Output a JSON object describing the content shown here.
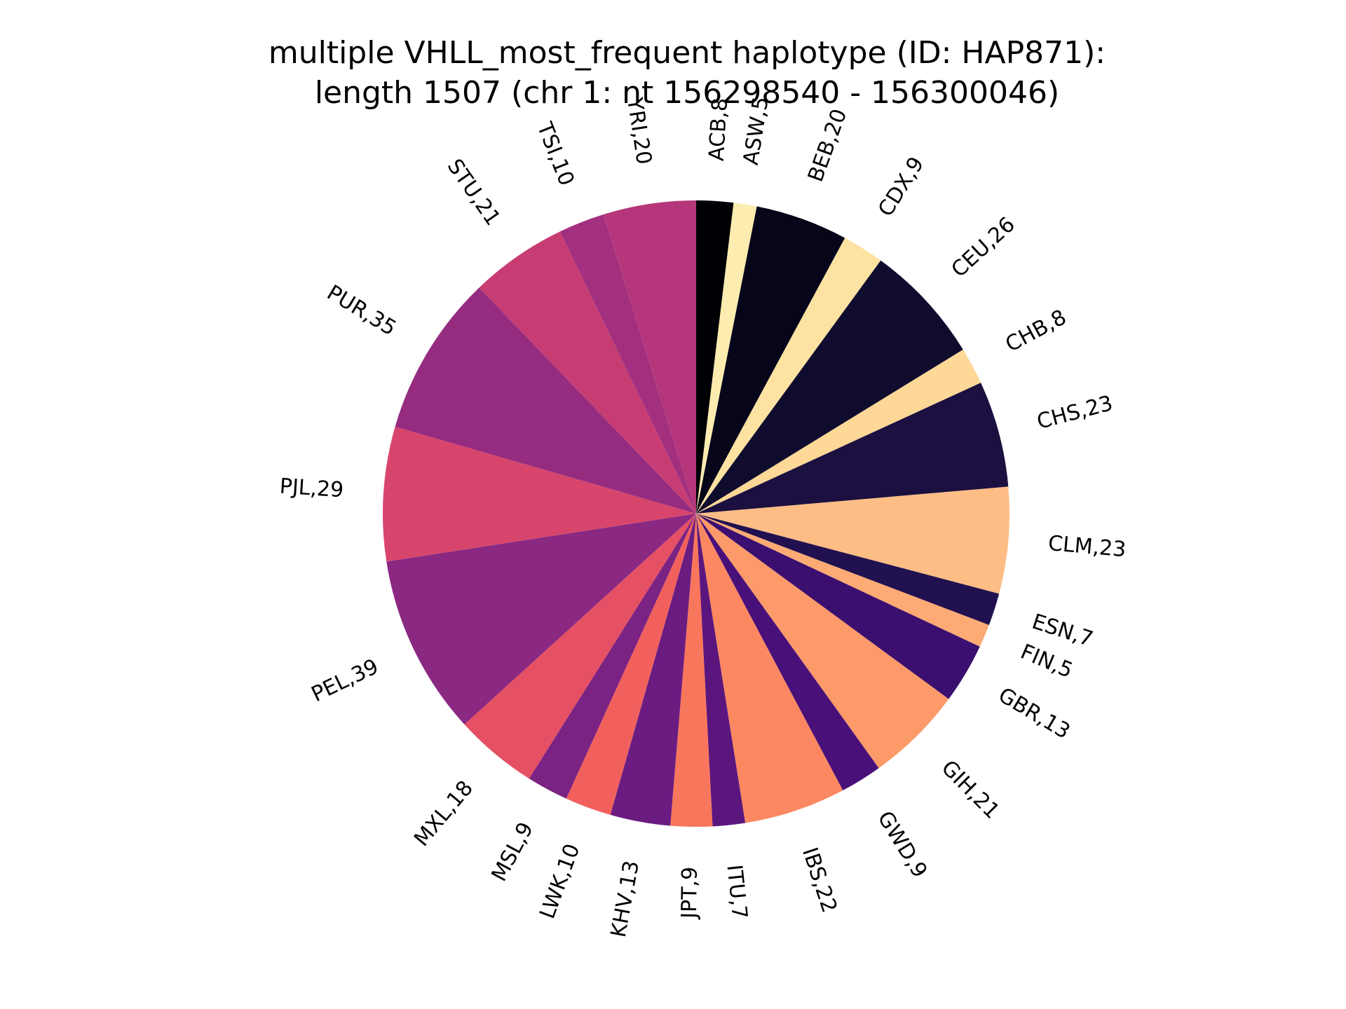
{
  "chart_data": {
    "type": "pie",
    "title_line1": "multiple VHLL_most_frequent haplotype (ID: HAP871):",
    "title_line2": "length 1507 (chr 1: nt 156298540 - 156300046)",
    "start_angle": "top",
    "direction": "clockwise",
    "slices": [
      {
        "label": "ACB,8",
        "value": 8,
        "color": "#000004"
      },
      {
        "label": "ASW,5",
        "value": 5,
        "color": "#fcecb0"
      },
      {
        "label": "BEB,20",
        "value": 20,
        "color": "#06051a"
      },
      {
        "label": "CDX,9",
        "value": 9,
        "color": "#fde2a2"
      },
      {
        "label": "CEU,26",
        "value": 26,
        "color": "#100c2e"
      },
      {
        "label": "CHB,8",
        "value": 8,
        "color": "#fdd896"
      },
      {
        "label": "CHS,23",
        "value": 23,
        "color": "#1c1040"
      },
      {
        "label": "CLM,23",
        "value": 23,
        "color": "#fdbd84"
      },
      {
        "label": "ESN,7",
        "value": 7,
        "color": "#221150"
      },
      {
        "label": "FIN,5",
        "value": 5,
        "color": "#feaa74"
      },
      {
        "label": "GBR,13",
        "value": 13,
        "color": "#3b0f6f"
      },
      {
        "label": "GIH,21",
        "value": 21,
        "color": "#fc9a6a"
      },
      {
        "label": "GWD,9",
        "value": 9,
        "color": "#4a1079"
      },
      {
        "label": "IBS,22",
        "value": 22,
        "color": "#fb8861"
      },
      {
        "label": "ITU,7",
        "value": 7,
        "color": "#5b167e"
      },
      {
        "label": "JPT,9",
        "value": 9,
        "color": "#f8765c"
      },
      {
        "label": "KHV,13",
        "value": 13,
        "color": "#6a1c81"
      },
      {
        "label": "LWK,10",
        "value": 10,
        "color": "#f1605d"
      },
      {
        "label": "MSL,9",
        "value": 9,
        "color": "#7b2382"
      },
      {
        "label": "MXL,18",
        "value": 18,
        "color": "#e55064"
      },
      {
        "label": "PEL,39",
        "value": 39,
        "color": "#8a2882"
      },
      {
        "label": "PJL,29",
        "value": 29,
        "color": "#d8456c"
      },
      {
        "label": "PUR,35",
        "value": 35,
        "color": "#952c80"
      },
      {
        "label": "STU,21",
        "value": 21,
        "color": "#c73d73"
      },
      {
        "label": "TSI,10",
        "value": 10,
        "color": "#a3307e"
      },
      {
        "label": "YRI,20",
        "value": 20,
        "color": "#b5367a"
      }
    ]
  }
}
